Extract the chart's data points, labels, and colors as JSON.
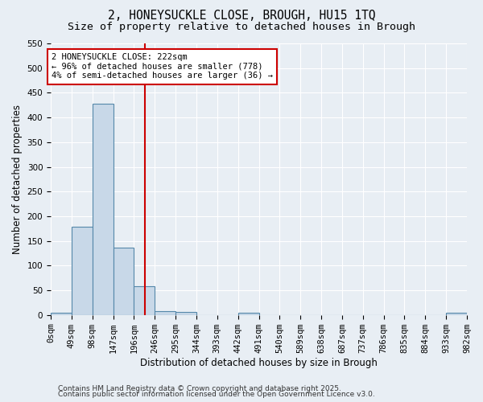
{
  "title_line1": "2, HONEYSUCKLE CLOSE, BROUGH, HU15 1TQ",
  "title_line2": "Size of property relative to detached houses in Brough",
  "xlabel": "Distribution of detached houses by size in Brough",
  "ylabel": "Number of detached properties",
  "bar_color": "#c8d8e8",
  "bar_edge_color": "#5588aa",
  "bin_edges": [
    0,
    49,
    98,
    147,
    196,
    245,
    294,
    343,
    392,
    441,
    490,
    539,
    588,
    637,
    686,
    735,
    784,
    833,
    882,
    931,
    980
  ],
  "bar_heights": [
    5,
    178,
    428,
    136,
    58,
    7,
    6,
    0,
    0,
    5,
    0,
    0,
    0,
    0,
    0,
    0,
    0,
    0,
    0,
    5
  ],
  "vline_x": 222,
  "vline_color": "#cc0000",
  "ylim": [
    0,
    550
  ],
  "yticks": [
    0,
    50,
    100,
    150,
    200,
    250,
    300,
    350,
    400,
    450,
    500,
    550
  ],
  "xtick_labels": [
    "0sqm",
    "49sqm",
    "98sqm",
    "147sqm",
    "196sqm",
    "246sqm",
    "295sqm",
    "344sqm",
    "393sqm",
    "442sqm",
    "491sqm",
    "540sqm",
    "589sqm",
    "638sqm",
    "687sqm",
    "737sqm",
    "786sqm",
    "835sqm",
    "884sqm",
    "933sqm",
    "982sqm"
  ],
  "annotation_text": "2 HONEYSUCKLE CLOSE: 222sqm\n← 96% of detached houses are smaller (778)\n4% of semi-detached houses are larger (36) →",
  "annotation_box_color": "#ffffff",
  "annotation_border_color": "#cc0000",
  "background_color": "#e8eef4",
  "footer_line1": "Contains HM Land Registry data © Crown copyright and database right 2025.",
  "footer_line2": "Contains public sector information licensed under the Open Government Licence v3.0.",
  "grid_color": "#ffffff",
  "title_fontsize": 10.5,
  "subtitle_fontsize": 9.5,
  "tick_fontsize": 7.5,
  "annotation_fontsize": 7.5,
  "footer_fontsize": 6.5,
  "ylabel_fontsize": 8.5,
  "xlabel_fontsize": 8.5
}
